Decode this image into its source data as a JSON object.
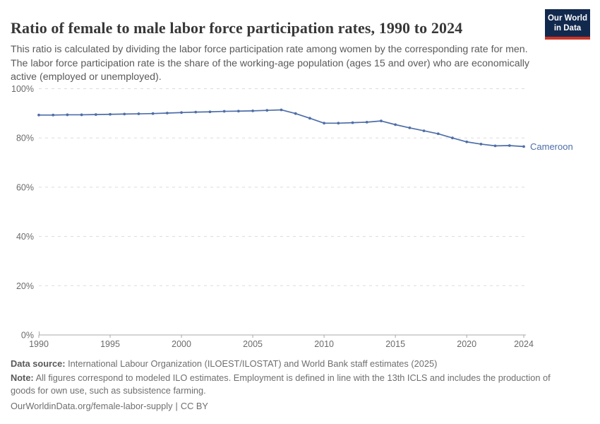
{
  "header": {
    "title": "Ratio of female to male labor force participation rates, 1990 to 2024",
    "subtitle": "This ratio is calculated by dividing the labor force participation rate among women by the corresponding rate for men. The labor force participation rate is the share of the working-age population (ages 15 and over) who are economically active (employed or unemployed)."
  },
  "logo": {
    "line1": "Our World",
    "line2": "in Data",
    "bg_color": "#12294e",
    "accent_color": "#cc3425"
  },
  "chart_data": {
    "type": "line",
    "title": "Ratio of female to male labor force participation rates, 1990 to 2024",
    "xlabel": "",
    "ylabel": "",
    "xlim": [
      1990,
      2024
    ],
    "ylim": [
      0,
      100
    ],
    "grid": "horizontal-dashed",
    "legend_position": "end-of-line-label",
    "x": [
      1990,
      1991,
      1992,
      1993,
      1994,
      1995,
      1996,
      1997,
      1998,
      1999,
      2000,
      2001,
      2002,
      2003,
      2004,
      2005,
      2006,
      2007,
      2008,
      2009,
      2010,
      2011,
      2012,
      2013,
      2014,
      2015,
      2016,
      2017,
      2018,
      2019,
      2020,
      2021,
      2022,
      2023,
      2024
    ],
    "series": [
      {
        "name": "Cameroon",
        "color": "#4e6ea9",
        "values": [
          89.3,
          89.3,
          89.4,
          89.4,
          89.5,
          89.6,
          89.7,
          89.8,
          89.9,
          90.1,
          90.3,
          90.5,
          90.6,
          90.8,
          90.9,
          91.0,
          91.2,
          91.4,
          89.9,
          88.0,
          86.0,
          86.0,
          86.2,
          86.4,
          86.9,
          85.4,
          84.1,
          82.9,
          81.7,
          80.0,
          78.4,
          77.5,
          76.8,
          76.9,
          76.5
        ]
      }
    ],
    "y_ticks": [
      {
        "value": 0,
        "label": "0%"
      },
      {
        "value": 20,
        "label": "20%"
      },
      {
        "value": 40,
        "label": "40%"
      },
      {
        "value": 60,
        "label": "60%"
      },
      {
        "value": 80,
        "label": "80%"
      },
      {
        "value": 100,
        "label": "100%"
      }
    ],
    "x_ticks": [
      1990,
      1995,
      2000,
      2005,
      2010,
      2015,
      2020,
      2024
    ],
    "colors": {
      "gridline": "#dcdcdc",
      "axis": "#a8a8a8",
      "tick_label": "#6b6b6b"
    }
  },
  "footer": {
    "data_source_label": "Data source:",
    "data_source_text": "International Labour Organization (ILOEST/ILOSTAT) and World Bank staff estimates (2025)",
    "note_label": "Note:",
    "note_text": "All figures correspond to modeled ILO estimates. Employment is defined in line with the 13th ICLS and includes the production of goods for own use, such as subsistence farming.",
    "url": "OurWorldinData.org/female-labor-supply",
    "separator": "|",
    "license": "CC BY"
  }
}
